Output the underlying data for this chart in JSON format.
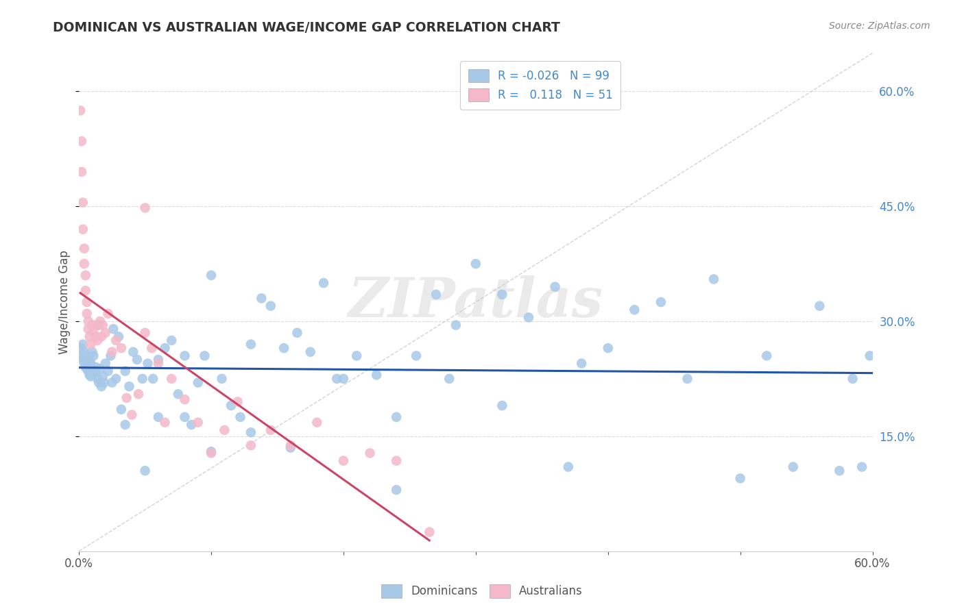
{
  "title": "DOMINICAN VS AUSTRALIAN WAGE/INCOME GAP CORRELATION CHART",
  "source": "Source: ZipAtlas.com",
  "ylabel": "Wage/Income Gap",
  "right_yticks": [
    "60.0%",
    "45.0%",
    "30.0%",
    "15.0%"
  ],
  "right_ytick_vals": [
    0.6,
    0.45,
    0.3,
    0.15
  ],
  "watermark": "ZIPatlas",
  "legend_label_blue": "Dominicans",
  "legend_label_pink": "Australians",
  "blue_color": "#a8c8e8",
  "pink_color": "#f4b8c8",
  "blue_line_color": "#2255aa",
  "pink_line_color": "#cc4466",
  "dashed_line_color": "#c8c8d8",
  "background_color": "#ffffff",
  "grid_color": "#d8d8e0",
  "blue_dots_x": [
    0.001,
    0.002,
    0.003,
    0.003,
    0.004,
    0.004,
    0.005,
    0.005,
    0.006,
    0.006,
    0.007,
    0.007,
    0.008,
    0.008,
    0.009,
    0.009,
    0.01,
    0.01,
    0.011,
    0.011,
    0.012,
    0.013,
    0.014,
    0.015,
    0.016,
    0.017,
    0.018,
    0.019,
    0.02,
    0.022,
    0.024,
    0.026,
    0.028,
    0.03,
    0.032,
    0.035,
    0.038,
    0.041,
    0.044,
    0.048,
    0.052,
    0.056,
    0.06,
    0.065,
    0.07,
    0.075,
    0.08,
    0.085,
    0.09,
    0.095,
    0.1,
    0.108,
    0.115,
    0.122,
    0.13,
    0.138,
    0.145,
    0.155,
    0.165,
    0.175,
    0.185,
    0.195,
    0.21,
    0.225,
    0.24,
    0.255,
    0.27,
    0.285,
    0.3,
    0.32,
    0.34,
    0.36,
    0.38,
    0.4,
    0.42,
    0.44,
    0.46,
    0.48,
    0.5,
    0.52,
    0.54,
    0.56,
    0.575,
    0.585,
    0.592,
    0.598,
    0.015,
    0.025,
    0.035,
    0.05,
    0.06,
    0.08,
    0.1,
    0.13,
    0.16,
    0.2,
    0.24,
    0.28,
    0.32,
    0.37
  ],
  "blue_dots_y": [
    0.265,
    0.255,
    0.27,
    0.25,
    0.26,
    0.245,
    0.255,
    0.24,
    0.248,
    0.238,
    0.252,
    0.235,
    0.248,
    0.23,
    0.245,
    0.228,
    0.26,
    0.235,
    0.255,
    0.232,
    0.235,
    0.24,
    0.225,
    0.22,
    0.238,
    0.215,
    0.228,
    0.22,
    0.245,
    0.235,
    0.255,
    0.29,
    0.225,
    0.28,
    0.185,
    0.235,
    0.215,
    0.26,
    0.25,
    0.225,
    0.245,
    0.225,
    0.25,
    0.265,
    0.275,
    0.205,
    0.255,
    0.165,
    0.22,
    0.255,
    0.36,
    0.225,
    0.19,
    0.175,
    0.27,
    0.33,
    0.32,
    0.265,
    0.285,
    0.26,
    0.35,
    0.225,
    0.255,
    0.23,
    0.08,
    0.255,
    0.335,
    0.295,
    0.375,
    0.335,
    0.305,
    0.345,
    0.245,
    0.265,
    0.315,
    0.325,
    0.225,
    0.355,
    0.095,
    0.255,
    0.11,
    0.32,
    0.105,
    0.225,
    0.11,
    0.255,
    0.295,
    0.22,
    0.165,
    0.105,
    0.175,
    0.175,
    0.13,
    0.155,
    0.135,
    0.225,
    0.175,
    0.225,
    0.19,
    0.11
  ],
  "pink_dots_x": [
    0.001,
    0.002,
    0.002,
    0.003,
    0.003,
    0.004,
    0.004,
    0.005,
    0.005,
    0.006,
    0.006,
    0.007,
    0.007,
    0.008,
    0.009,
    0.01,
    0.011,
    0.012,
    0.013,
    0.014,
    0.015,
    0.016,
    0.017,
    0.018,
    0.02,
    0.022,
    0.025,
    0.028,
    0.032,
    0.036,
    0.04,
    0.045,
    0.05,
    0.055,
    0.06,
    0.065,
    0.07,
    0.08,
    0.09,
    0.1,
    0.11,
    0.12,
    0.13,
    0.145,
    0.16,
    0.18,
    0.2,
    0.22,
    0.24,
    0.265,
    0.05
  ],
  "pink_dots_y": [
    0.575,
    0.535,
    0.495,
    0.455,
    0.42,
    0.395,
    0.375,
    0.36,
    0.34,
    0.325,
    0.31,
    0.3,
    0.29,
    0.28,
    0.27,
    0.295,
    0.285,
    0.295,
    0.28,
    0.275,
    0.295,
    0.3,
    0.28,
    0.295,
    0.285,
    0.31,
    0.26,
    0.275,
    0.265,
    0.2,
    0.178,
    0.205,
    0.285,
    0.265,
    0.245,
    0.168,
    0.225,
    0.198,
    0.168,
    0.128,
    0.158,
    0.195,
    0.138,
    0.158,
    0.138,
    0.168,
    0.118,
    0.128,
    0.118,
    0.025,
    0.448
  ],
  "pink_line_x_start": 0.001,
  "pink_line_x_end": 0.265,
  "xmin": 0.0,
  "xmax": 0.6,
  "ymin": 0.0,
  "ymax": 0.65
}
